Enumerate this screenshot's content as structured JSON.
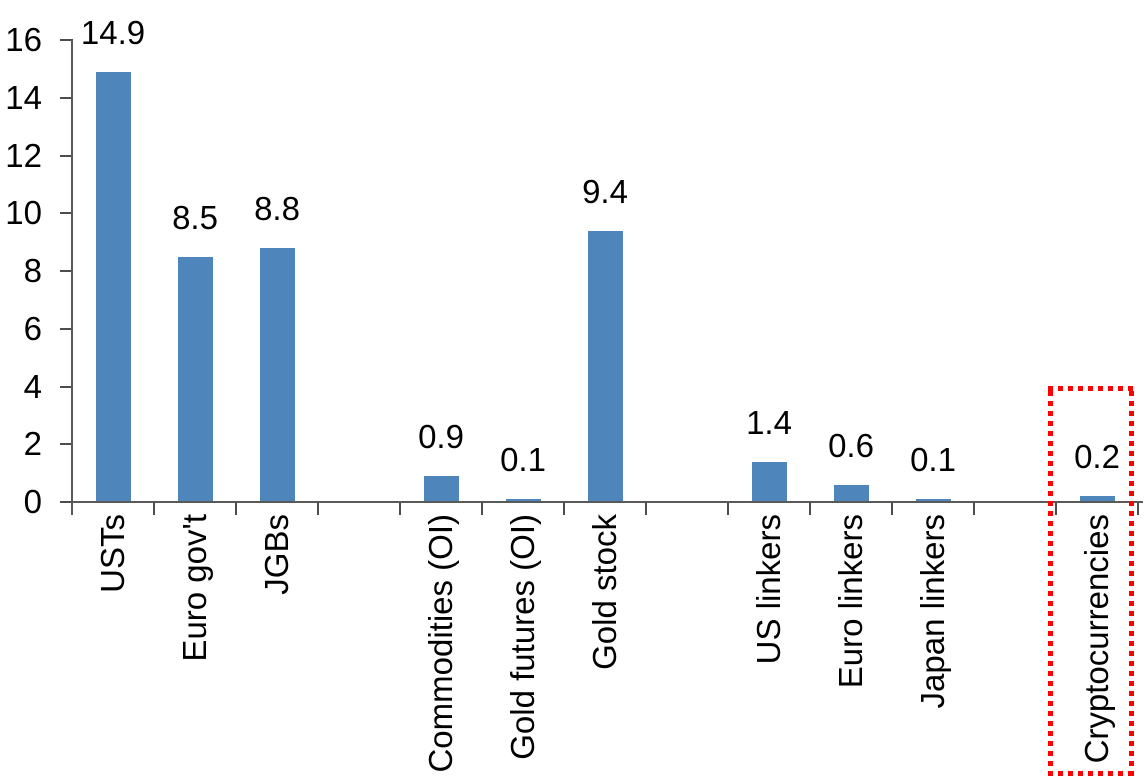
{
  "chart_data": {
    "type": "bar",
    "categories": [
      "USTs",
      "Euro gov't",
      "JGBs",
      "",
      "Commodities (OI)",
      "Gold futures (OI)",
      "Gold stock",
      "",
      "US linkers",
      "Euro linkers",
      "Japan linkers",
      "",
      "Cryptocurrencies"
    ],
    "values": [
      14.9,
      8.5,
      8.8,
      null,
      0.9,
      0.1,
      9.4,
      null,
      1.4,
      0.6,
      0.1,
      null,
      0.2
    ],
    "value_labels": [
      "14.9",
      "8.5",
      "8.8",
      "",
      "0.9",
      "0.1",
      "9.4",
      "",
      "1.4",
      "0.6",
      "0.1",
      "",
      "0.2"
    ],
    "yticks": [
      0,
      2,
      4,
      6,
      8,
      10,
      12,
      14,
      16
    ],
    "ylim": [
      0,
      16
    ],
    "grid": false,
    "legend": false,
    "bar_color": "#4E86BC",
    "axis_color": "#595959",
    "tick_color": "#4D4D4D",
    "text_color": "#000000",
    "highlight": {
      "category": "Cryptocurrencies",
      "style": "dotted-outline",
      "color": "#FF0000"
    }
  }
}
